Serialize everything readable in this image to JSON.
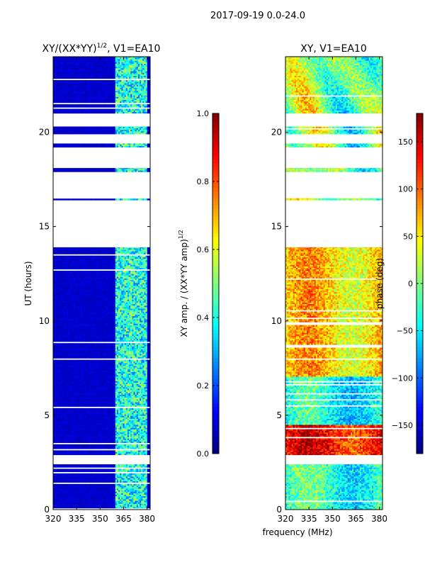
{
  "figure": {
    "suptitle": "2017-09-19 0.0-24.0",
    "xlabel": "frequency (MHz)"
  },
  "chart_data": [
    {
      "type": "heatmap",
      "title": "XY/(XX*YY)^1/2, V1=EA10",
      "title_main": "XY/(XX*YY)",
      "title_sup": "1/2",
      "title_tail": ", V1=EA10",
      "ylabel": "UT (hours)",
      "xlim": [
        320,
        382
      ],
      "ylim": [
        0,
        24
      ],
      "xticks": [
        "320",
        "335",
        "350",
        "365",
        "380"
      ],
      "xtick_values": [
        320,
        335,
        350,
        365,
        380
      ],
      "yticks": [
        "0",
        "5",
        "10",
        "15",
        "20"
      ],
      "ytick_values": [
        0,
        5,
        10,
        15,
        20
      ],
      "colormap": "jet",
      "colorbar": {
        "label_main": "XY amp. / (XX*YY amp)",
        "label_sup": "1/2",
        "range": [
          0.0,
          1.0
        ],
        "ticks": [
          "0.0",
          "0.2",
          "0.4",
          "0.6",
          "0.8",
          "1.0"
        ],
        "tick_values": [
          0.0,
          0.2,
          0.4,
          0.6,
          0.8,
          1.0
        ]
      },
      "data_hours": [
        [
          0,
          2.4
        ],
        [
          2.9,
          13.9
        ],
        [
          16.4,
          16.5
        ],
        [
          17.9,
          18.1
        ],
        [
          19.2,
          19.4
        ],
        [
          19.9,
          20.3
        ],
        [
          21.0,
          24.0
        ]
      ],
      "background_value": 0.05,
      "rfi_band_MHz": [
        359,
        381
      ],
      "rfi_band_value": 0.4
    },
    {
      "type": "heatmap",
      "title": "XY, V1=EA10",
      "xlim": [
        320,
        382
      ],
      "ylim": [
        0,
        24
      ],
      "xticks": [
        "320",
        "335",
        "350",
        "365",
        "380"
      ],
      "xtick_values": [
        320,
        335,
        350,
        365,
        380
      ],
      "yticks": [
        "0",
        "5",
        "10",
        "15",
        "20"
      ],
      "ytick_values": [
        0,
        5,
        10,
        15,
        20
      ],
      "colormap": "jet",
      "colorbar": {
        "label": "phase (deg)",
        "range": [
          -180,
          180
        ],
        "ticks": [
          "−150",
          "−100",
          "−50",
          "0",
          "50",
          "100",
          "150"
        ],
        "tick_values": [
          -150,
          -100,
          -50,
          0,
          50,
          100,
          150
        ]
      },
      "data_hours": [
        [
          0,
          2.4
        ],
        [
          2.9,
          13.9
        ],
        [
          16.4,
          16.5
        ],
        [
          17.9,
          18.1
        ],
        [
          19.2,
          19.4
        ],
        [
          19.9,
          20.3
        ],
        [
          21.0,
          24.0
        ]
      ],
      "phase_bands_deg": [
        {
          "hours": [
            0,
            2.4
          ],
          "phase": -30
        },
        {
          "hours": [
            2.9,
            4.5
          ],
          "phase": 130
        },
        {
          "hours": [
            4.5,
            7.0
          ],
          "phase": -40
        },
        {
          "hours": [
            7.0,
            13.9
          ],
          "phase": 60
        }
      ]
    }
  ]
}
